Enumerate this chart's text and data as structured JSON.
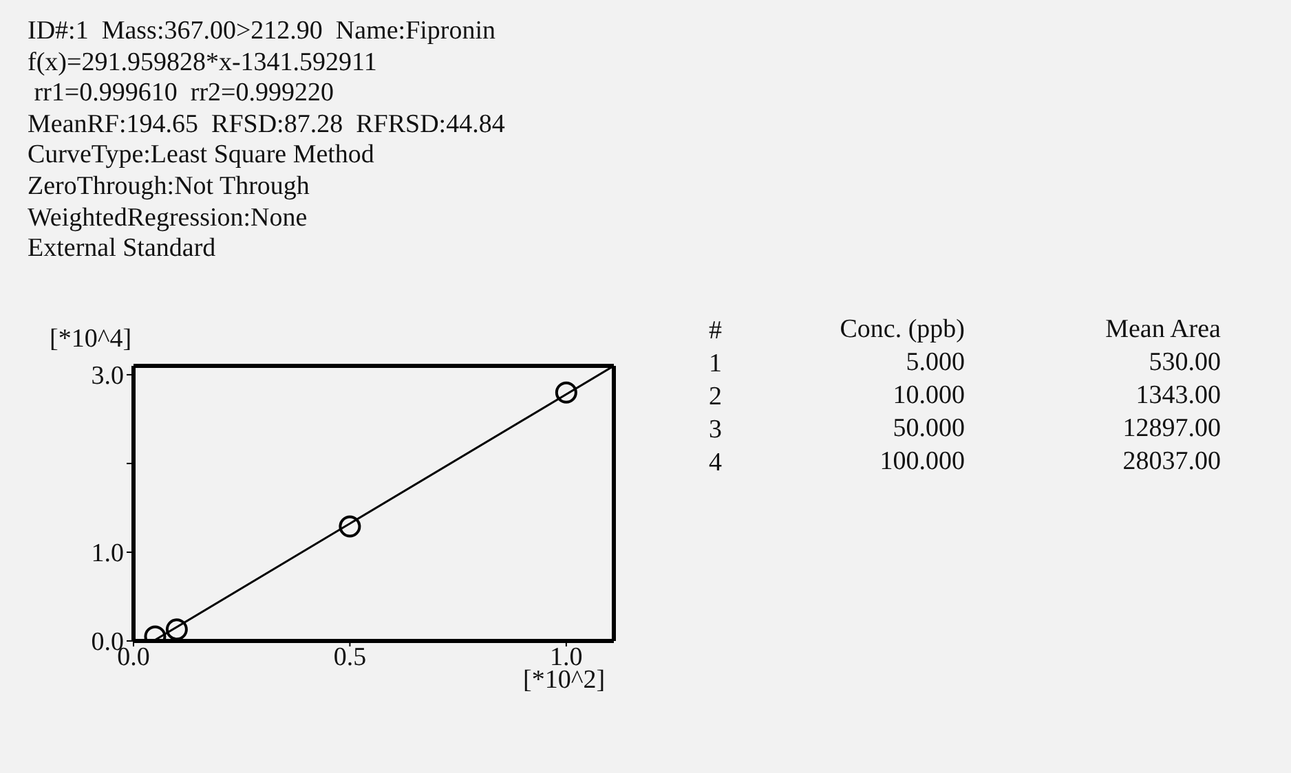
{
  "chart_data": {
    "type": "scatter",
    "title": "ID#:1  Mass:367.00>212.90  Name:Fipronin",
    "annotations": [
      "f(x)=291.959828*x-1341.592911",
      " rr1=0.999610  rr2=0.999220",
      "MeanRF:194.65  RFSD:87.28  RFRSD:44.84",
      "CurveType:Least Square Method",
      "ZeroThrough:Not Through",
      "WeightedRegression:None",
      "External Standard",
      "#",
      "Conc. (ppb)",
      "Mean Area",
      "1",
      "5.000",
      "530.00",
      "2",
      "10.000",
      "1343.00",
      "3",
      "50.000",
      "12897.00",
      "4",
      "100.000",
      "28037.00"
    ],
    "xlabel": "[*10^2]",
    "ylabel": "[*10^4]",
    "xlim": [
      0,
      1.11
    ],
    "xticks": [
      {
        "value": 0,
        "label": "0.0"
      },
      {
        "value": 0.5,
        "label": "0.5"
      },
      {
        "value": 1,
        "label": "1.0"
      }
    ],
    "ylim": [
      0,
      3.1
    ],
    "yticks": [
      {
        "value": 0,
        "label": "0.0"
      },
      {
        "value": 1,
        "label": "1.0"
      },
      {
        "value": 2,
        "label": null
      },
      {
        "value": 3,
        "label": "3.0"
      }
    ],
    "series": [
      {
        "type": "scatter",
        "color": "#000000",
        "marker": "circle",
        "x": [
          0.05,
          0.1,
          0.5,
          1
        ],
        "values": [
          0.05,
          0.13,
          1.29,
          2.8
        ]
      },
      {
        "type": "line",
        "color": "#000000",
        "x": [
          0.046,
          1.11
        ],
        "values": [
          0,
          3.1
        ]
      }
    ]
  }
}
